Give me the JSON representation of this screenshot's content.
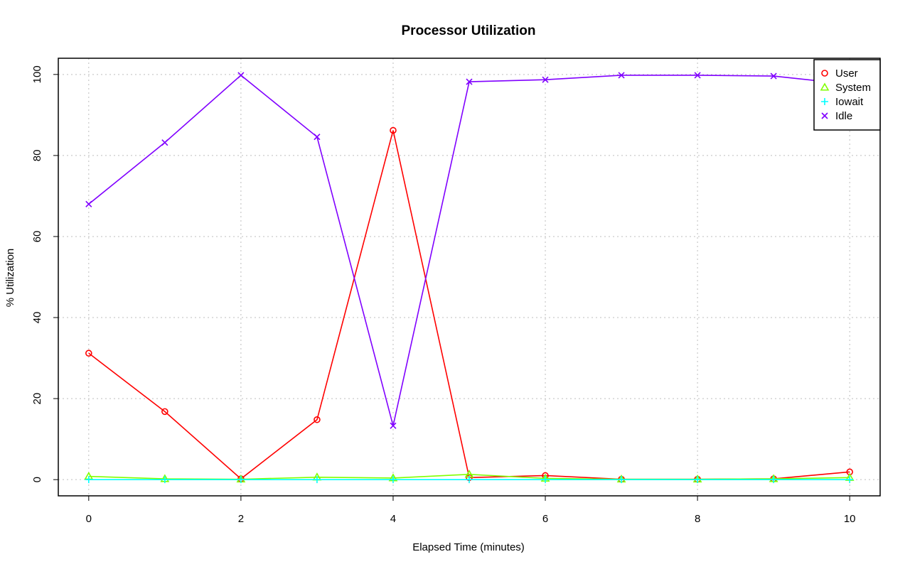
{
  "chart_data": {
    "type": "line",
    "title": "Processor Utilization",
    "xlabel": "Elapsed Time (minutes)",
    "ylabel": "% Utilization",
    "xlim": [
      -0.4,
      10.4
    ],
    "ylim": [
      -4,
      104
    ],
    "xticks": [
      0,
      2,
      4,
      6,
      8,
      10
    ],
    "yticks": [
      0,
      20,
      40,
      60,
      80,
      100
    ],
    "grid": true,
    "legend_position": "top-right",
    "x": [
      0,
      1,
      2,
      3,
      4,
      5,
      6,
      7,
      8,
      9,
      10
    ],
    "series": [
      {
        "name": "User",
        "color": "#ff0000",
        "marker": "circle",
        "values": [
          31.2,
          16.8,
          0.2,
          14.8,
          86.2,
          0.5,
          1.0,
          0.1,
          0.1,
          0.2,
          1.9
        ]
      },
      {
        "name": "System",
        "color": "#80ff00",
        "marker": "triangle",
        "values": [
          0.8,
          0.2,
          0.1,
          0.6,
          0.4,
          1.3,
          0.3,
          0.1,
          0.1,
          0.2,
          0.5
        ]
      },
      {
        "name": "Iowait",
        "color": "#00ffff",
        "marker": "plus",
        "values": [
          0.0,
          0.0,
          0.0,
          0.0,
          0.0,
          0.0,
          0.0,
          0.0,
          0.0,
          0.0,
          0.0
        ]
      },
      {
        "name": "Idle",
        "color": "#8000ff",
        "marker": "cross",
        "values": [
          68.0,
          83.2,
          99.8,
          84.6,
          13.3,
          98.2,
          98.7,
          99.8,
          99.8,
          99.6,
          97.6
        ]
      }
    ]
  }
}
